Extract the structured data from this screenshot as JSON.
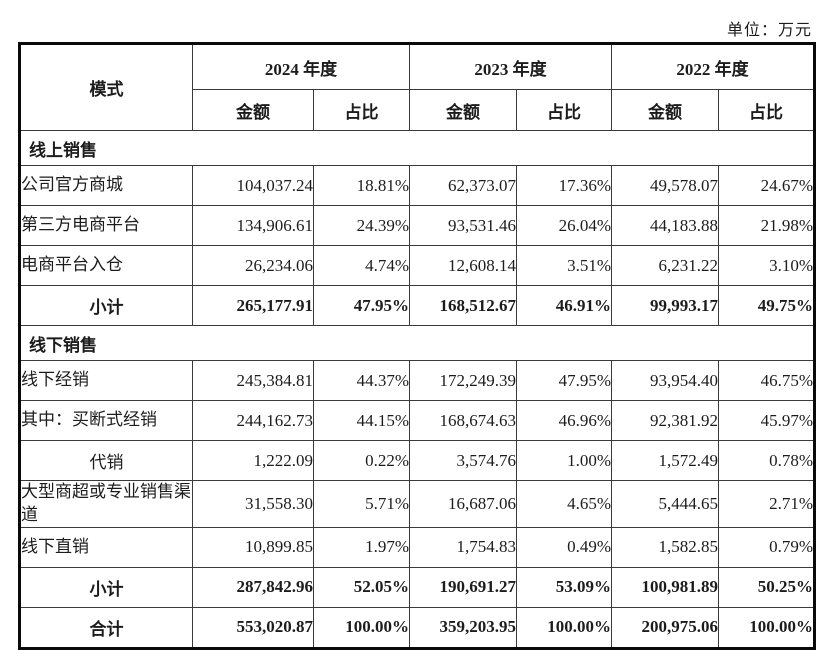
{
  "page": {
    "unit_label": "单位：万元"
  },
  "colors": {
    "background": "#ffffff",
    "text": "#1c1c1c",
    "border_outer": "#0a0a0a",
    "border_inner": "#3a3a3a"
  },
  "table": {
    "header": {
      "mode": "模式",
      "years": [
        "2024 年度",
        "2023 年度",
        "2022 年度"
      ],
      "amount": "金额",
      "ratio": "占比"
    },
    "rows": [
      {
        "type": "section",
        "label": "线上销售"
      },
      {
        "type": "data",
        "label": "公司官方商城",
        "label_align": "left",
        "values": [
          "104,037.24",
          "18.81%",
          "62,373.07",
          "17.36%",
          "49,578.07",
          "24.67%"
        ]
      },
      {
        "type": "data",
        "label": "第三方电商平台",
        "label_align": "left",
        "values": [
          "134,906.61",
          "24.39%",
          "93,531.46",
          "26.04%",
          "44,183.88",
          "21.98%"
        ]
      },
      {
        "type": "data",
        "label": "电商平台入仓",
        "label_align": "left",
        "values": [
          "26,234.06",
          "4.74%",
          "12,608.14",
          "3.51%",
          "6,231.22",
          "3.10%"
        ]
      },
      {
        "type": "subtotal",
        "label": "小计",
        "label_align": "center",
        "values": [
          "265,177.91",
          "47.95%",
          "168,512.67",
          "46.91%",
          "99,993.17",
          "49.75%"
        ]
      },
      {
        "type": "section",
        "label": "线下销售"
      },
      {
        "type": "data",
        "label": "线下经销",
        "label_align": "left",
        "values": [
          "245,384.81",
          "44.37%",
          "172,249.39",
          "47.95%",
          "93,954.40",
          "46.75%"
        ]
      },
      {
        "type": "data",
        "label": "其中：买断式经销",
        "label_align": "left",
        "values": [
          "244,162.73",
          "44.15%",
          "168,674.63",
          "46.96%",
          "92,381.92",
          "45.97%"
        ]
      },
      {
        "type": "data",
        "label": "代销",
        "label_align": "center",
        "values": [
          "1,222.09",
          "0.22%",
          "3,574.76",
          "1.00%",
          "1,572.49",
          "0.78%"
        ]
      },
      {
        "type": "data",
        "label": "大型商超或专业销售渠道",
        "label_align": "left",
        "values": [
          "31,558.30",
          "5.71%",
          "16,687.06",
          "4.65%",
          "5,444.65",
          "2.71%"
        ]
      },
      {
        "type": "data",
        "label": "线下直销",
        "label_align": "left",
        "values": [
          "10,899.85",
          "1.97%",
          "1,754.83",
          "0.49%",
          "1,582.85",
          "0.79%"
        ]
      },
      {
        "type": "subtotal",
        "label": "小计",
        "label_align": "center",
        "values": [
          "287,842.96",
          "52.05%",
          "190,691.27",
          "53.09%",
          "100,981.89",
          "50.25%"
        ]
      },
      {
        "type": "total",
        "label": "合计",
        "label_align": "center",
        "values": [
          "553,020.87",
          "100.00%",
          "359,203.95",
          "100.00%",
          "200,975.06",
          "100.00%"
        ]
      }
    ]
  }
}
